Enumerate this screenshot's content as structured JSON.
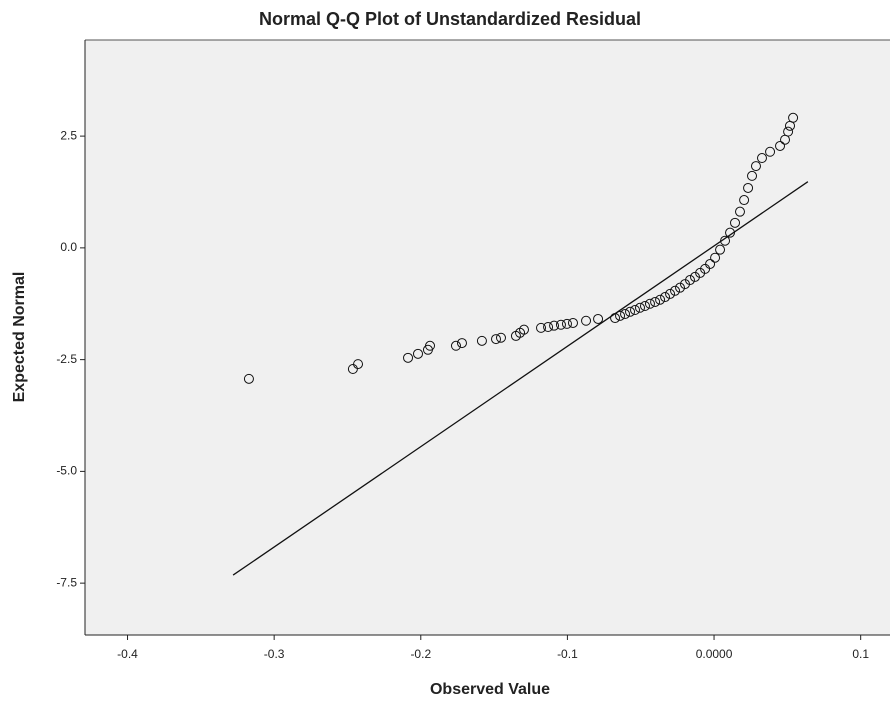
{
  "chart_data": {
    "type": "scatter",
    "title": "Normal Q-Q Plot of Unstandardized Residual",
    "x_label": "Observed Value",
    "y_label": "Expected Normal",
    "x": [
      -0.3172,
      -0.2463,
      -0.2428,
      -0.2087,
      -0.2019,
      -0.1951,
      -0.1937,
      -0.176,
      -0.1719,
      -0.1583,
      -0.1487,
      -0.1453,
      -0.1351,
      -0.1323,
      -0.1296,
      -0.118,
      -0.1132,
      -0.1091,
      -0.1044,
      -0.1003,
      -0.0962,
      -0.0873,
      -0.0791,
      -0.0675,
      -0.0641,
      -0.0607,
      -0.0573,
      -0.0539,
      -0.0505,
      -0.0471,
      -0.0437,
      -0.0402,
      -0.0368,
      -0.0334,
      -0.03,
      -0.0266,
      -0.0232,
      -0.0198,
      -0.0164,
      -0.013,
      -0.0095,
      -0.0061,
      -0.0027,
      0.0007,
      0.0041,
      0.0075,
      0.0109,
      0.0143,
      0.0177,
      0.0205,
      0.0232,
      0.0259,
      0.0286,
      0.0327,
      0.0382,
      0.045,
      0.0484,
      0.0505,
      0.0518,
      0.0539
    ],
    "values": [
      -2.93,
      -2.71,
      -2.6,
      -2.46,
      -2.37,
      -2.28,
      -2.19,
      -2.19,
      -2.13,
      -2.08,
      -2.04,
      -2.01,
      -1.97,
      -1.9,
      -1.83,
      -1.79,
      -1.77,
      -1.74,
      -1.72,
      -1.7,
      -1.68,
      -1.63,
      -1.59,
      -1.57,
      -1.52,
      -1.48,
      -1.43,
      -1.39,
      -1.34,
      -1.3,
      -1.25,
      -1.21,
      -1.16,
      -1.1,
      -1.03,
      -0.96,
      -0.89,
      -0.81,
      -0.72,
      -0.65,
      -0.56,
      -0.47,
      -0.36,
      -0.22,
      -0.04,
      0.16,
      0.34,
      0.56,
      0.81,
      1.07,
      1.34,
      1.61,
      1.83,
      2.01,
      2.15,
      2.28,
      2.42,
      2.6,
      2.73,
      2.91
    ],
    "reference_line": {
      "x": [
        -0.328,
        0.064
      ],
      "y": [
        -7.32,
        1.48
      ]
    },
    "xlim": [
      -0.429,
      0.12
    ],
    "ylim": [
      -8.66,
      4.65
    ],
    "xticks": [
      -0.4,
      -0.3,
      -0.2,
      -0.1,
      {
        "value": 0,
        "label": "0.0000"
      },
      0.1
    ],
    "yticks": [
      {
        "value": -7.5,
        "label": "-7.5"
      },
      {
        "value": -5,
        "label": "-5.0"
      },
      {
        "value": -2.5,
        "label": "-2.5"
      },
      {
        "value": 0,
        "label": "0.0"
      },
      {
        "value": 2.5,
        "label": "2.5"
      }
    ]
  }
}
